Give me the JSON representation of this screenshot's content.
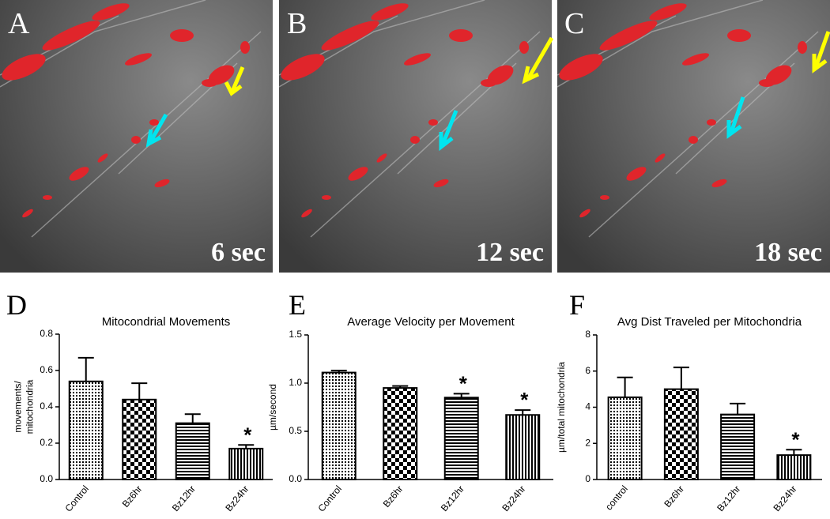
{
  "panels": [
    {
      "letter": "A",
      "time": "6 sec"
    },
    {
      "letter": "B",
      "time": "12 sec"
    },
    {
      "letter": "C",
      "time": "18 sec"
    }
  ],
  "chart_data": [
    {
      "type": "bar",
      "letter": "D",
      "title": "Mitocondrial Movements",
      "ylabel": [
        "movements/",
        "mitochondria"
      ],
      "categories": [
        "Control",
        "Bz6hr",
        "Bz12hr",
        "Bz24hr"
      ],
      "values": [
        0.54,
        0.44,
        0.31,
        0.17
      ],
      "errors": [
        0.13,
        0.09,
        0.05,
        0.02
      ],
      "significance": [
        null,
        null,
        null,
        "*"
      ],
      "ylim": [
        0,
        0.8
      ],
      "yticks": [
        {
          "value": 0,
          "label": "0.0"
        },
        0.2,
        0.4,
        0.6,
        0.8
      ]
    },
    {
      "type": "bar",
      "letter": "E",
      "title": "Average Velocity per Movement",
      "ylabel": [
        "µm/second"
      ],
      "categories": [
        "Control",
        "Bz6hr",
        "Bz12hr",
        "Bz24hr"
      ],
      "values": [
        1.11,
        0.95,
        0.85,
        0.67
      ],
      "errors": [
        0.02,
        0.02,
        0.04,
        0.05
      ],
      "significance": [
        null,
        null,
        "*",
        "*"
      ],
      "ylim": [
        0,
        1.5
      ],
      "yticks": [
        {
          "value": 0,
          "label": "0.0"
        },
        0.5,
        {
          "value": 1,
          "label": "1.0"
        },
        1.5
      ]
    },
    {
      "type": "bar",
      "letter": "F",
      "title": "Avg Dist Traveled per Mitochondria",
      "ylabel": [
        "µm/total mitochondria"
      ],
      "categories": [
        "control",
        "Bz6hr",
        "Bz12hr",
        "Bz24hr"
      ],
      "values": [
        4.55,
        5.0,
        3.6,
        1.35
      ],
      "errors": [
        1.1,
        1.2,
        0.6,
        0.3
      ],
      "significance": [
        null,
        null,
        null,
        "*"
      ],
      "ylim": [
        0,
        8
      ],
      "yticks": [
        0,
        2,
        4,
        6,
        8
      ]
    }
  ]
}
